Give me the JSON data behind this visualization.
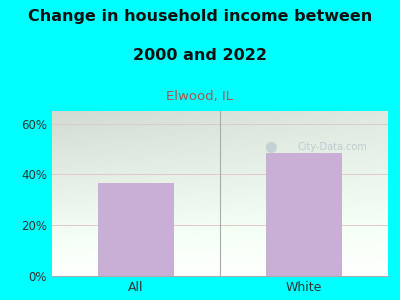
{
  "title_line1": "Change in household income between",
  "title_line2": "2000 and 2022",
  "subtitle": "Elwood, IL",
  "categories": [
    "All",
    "White"
  ],
  "values": [
    36.5,
    48.5
  ],
  "bar_color": "#c9aed6",
  "bg_color": "#00FFFF",
  "title_fontsize": 11.5,
  "subtitle_fontsize": 9.5,
  "ylim": [
    0,
    65
  ],
  "yticks": [
    0,
    20,
    40,
    60
  ],
  "yticklabels": [
    "0%",
    "20%",
    "40%",
    "60%"
  ],
  "watermark": "City-Data.com",
  "watermark_color": "#b8c8d0",
  "title_color": "#111111",
  "subtitle_color": "#b05050",
  "tick_label_color": "#333333",
  "grid_color": "#e0c8c8",
  "separator_color": "#aaaaaa"
}
